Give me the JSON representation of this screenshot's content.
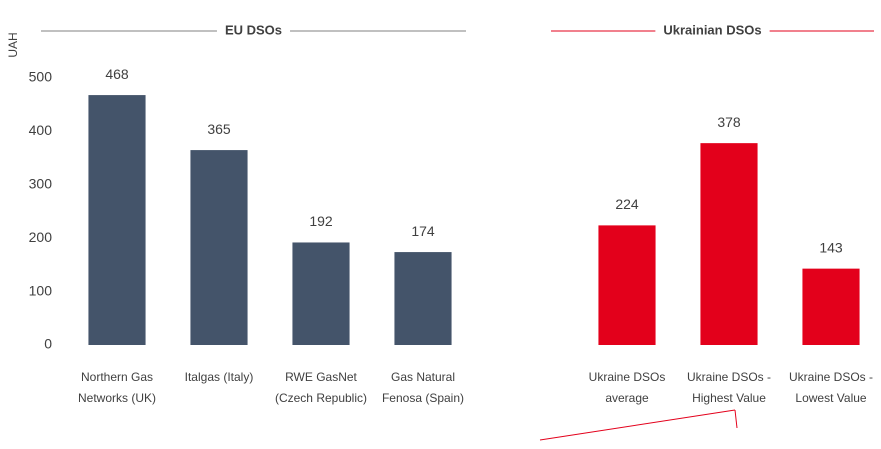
{
  "chart_data": {
    "type": "bar",
    "ylabel": "UAH",
    "categories": [
      "Northern Gas Networks (UK)",
      "Italgas (Italy)",
      "RWE GasNet (Czech Republic)",
      "Gas Natural Fenosa (Spain)",
      null,
      "Ukraine DSOs average",
      "Ukraine DSOs - Highest Value",
      "Ukraine DSOs - Lowest Value"
    ],
    "series": [
      {
        "name": "EU DSOs",
        "color": "#44546a",
        "values": [
          468,
          365,
          192,
          174,
          null,
          null,
          null,
          null
        ]
      },
      {
        "name": "Ukrainian DSOs",
        "color": "#e3001b",
        "values": [
          null,
          null,
          null,
          null,
          null,
          224,
          378,
          143
        ]
      }
    ],
    "ylim": [
      0,
      500
    ],
    "yticks": [
      0,
      100,
      200,
      300,
      400,
      500
    ],
    "grid": false
  }
}
